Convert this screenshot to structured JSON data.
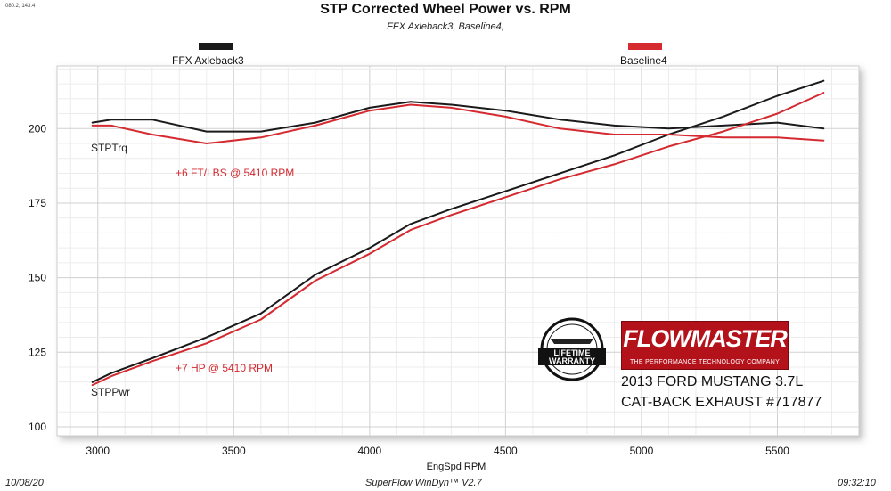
{
  "corner_code": "080.2, 143.4",
  "footer": {
    "date": "10/08/20",
    "software": "SuperFlow WinDyn™ V2.7",
    "time": "09:32:10"
  },
  "branding": {
    "badge_line1": "LIFETIME",
    "badge_line2": "WARRANTY",
    "logo_name": "FLOWMASTER",
    "logo_tagline": "THE PERFORMANCE TECHNOLOGY COMPANY",
    "vehicle_line1": "2013 FORD MUSTANG 3.7L",
    "vehicle_line2": "CAT-BACK EXHAUST #717877"
  },
  "colors": {
    "ffx": "#1a1a1a",
    "baseline": "#d42a30",
    "brand_red": "#b4121b"
  },
  "chart_data": {
    "type": "line",
    "title": "STP Corrected Wheel Power vs. RPM",
    "subtitle": "FFX Axleback3, Baseline4,",
    "xlabel": "EngSpd  RPM",
    "ylabel": "",
    "xlim": [
      2850,
      5800
    ],
    "ylim": [
      97,
      221
    ],
    "xticks": [
      "3000",
      "3500",
      "4000",
      "4500",
      "5000",
      "5500"
    ],
    "yticks": [
      "100",
      "125",
      "150",
      "175",
      "200"
    ],
    "grid": true,
    "legend_placement": "top",
    "legend": [
      "FFX Axleback3",
      "Baseline4"
    ],
    "curve_labels": [
      "STPTrq",
      "STPPwr"
    ],
    "annotations": [
      "+6 FT/LBS @ 5410 RPM",
      "+7 HP @ 5410 RPM"
    ],
    "series": [
      {
        "name": "FFX Axleback3",
        "color": "#1a1a1a",
        "x": [
          2980,
          3050,
          3200,
          3400,
          3600,
          3800,
          4000,
          4150,
          4300,
          4500,
          4700,
          4900,
          5100,
          5300,
          5500,
          5670
        ],
        "torque": [
          202,
          203,
          203,
          199,
          199,
          202,
          207,
          209,
          208,
          206,
          203,
          201,
          200,
          201,
          202,
          200
        ],
        "power": [
          115,
          118,
          123,
          130,
          138,
          151,
          160,
          168,
          173,
          179,
          185,
          191,
          198,
          204,
          211,
          216
        ]
      },
      {
        "name": "Baseline4",
        "color": "#d42a30",
        "x": [
          2980,
          3050,
          3200,
          3400,
          3600,
          3800,
          4000,
          4150,
          4300,
          4500,
          4700,
          4900,
          5100,
          5300,
          5500,
          5670
        ],
        "torque": [
          201,
          201,
          198,
          195,
          197,
          201,
          206,
          208,
          207,
          204,
          200,
          198,
          198,
          197,
          197,
          196
        ],
        "power": [
          114,
          117,
          122,
          128,
          136,
          149,
          158,
          166,
          171,
          177,
          183,
          188,
          194,
          199,
          205,
          212
        ]
      }
    ]
  }
}
